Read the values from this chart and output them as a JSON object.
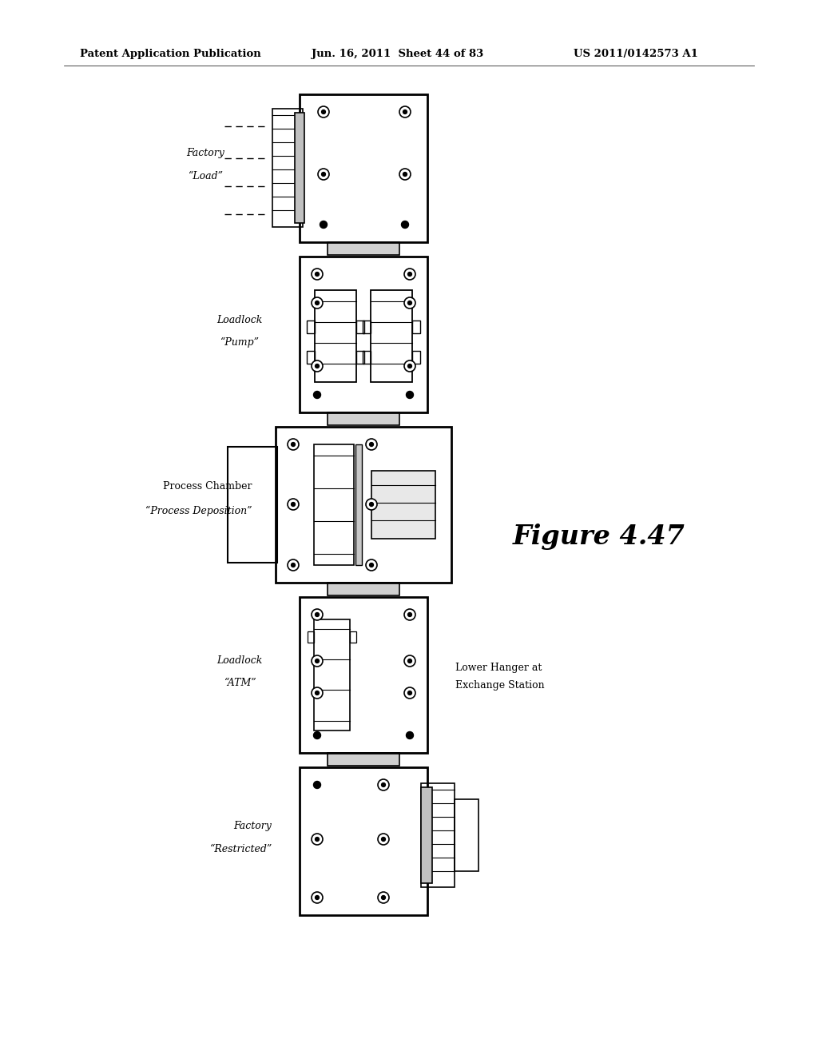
{
  "bg_color": "#ffffff",
  "header_left": "Patent Application Publication",
  "header_center": "Jun. 16, 2011  Sheet 44 of 83",
  "header_right": "US 2011/0142573 A1",
  "figure_label": "Figure 4.47",
  "label_factory_load_1": "Factory",
  "label_factory_load_2": "“Load”",
  "label_loadlock_pump_1": "Loadlock",
  "label_loadlock_pump_2": "“Pump”",
  "label_process_1": "Process Chamber",
  "label_process_2": "“Process Deposition”",
  "label_loadlock_atm_1": "Loadlock",
  "label_loadlock_atm_2": "“ATM”",
  "label_factory_restr_1": "Factory",
  "label_factory_restr_2": "“Restricted”",
  "label_lower_hanger_1": "Lower Hanger at",
  "label_lower_hanger_2": "Exchange Station"
}
